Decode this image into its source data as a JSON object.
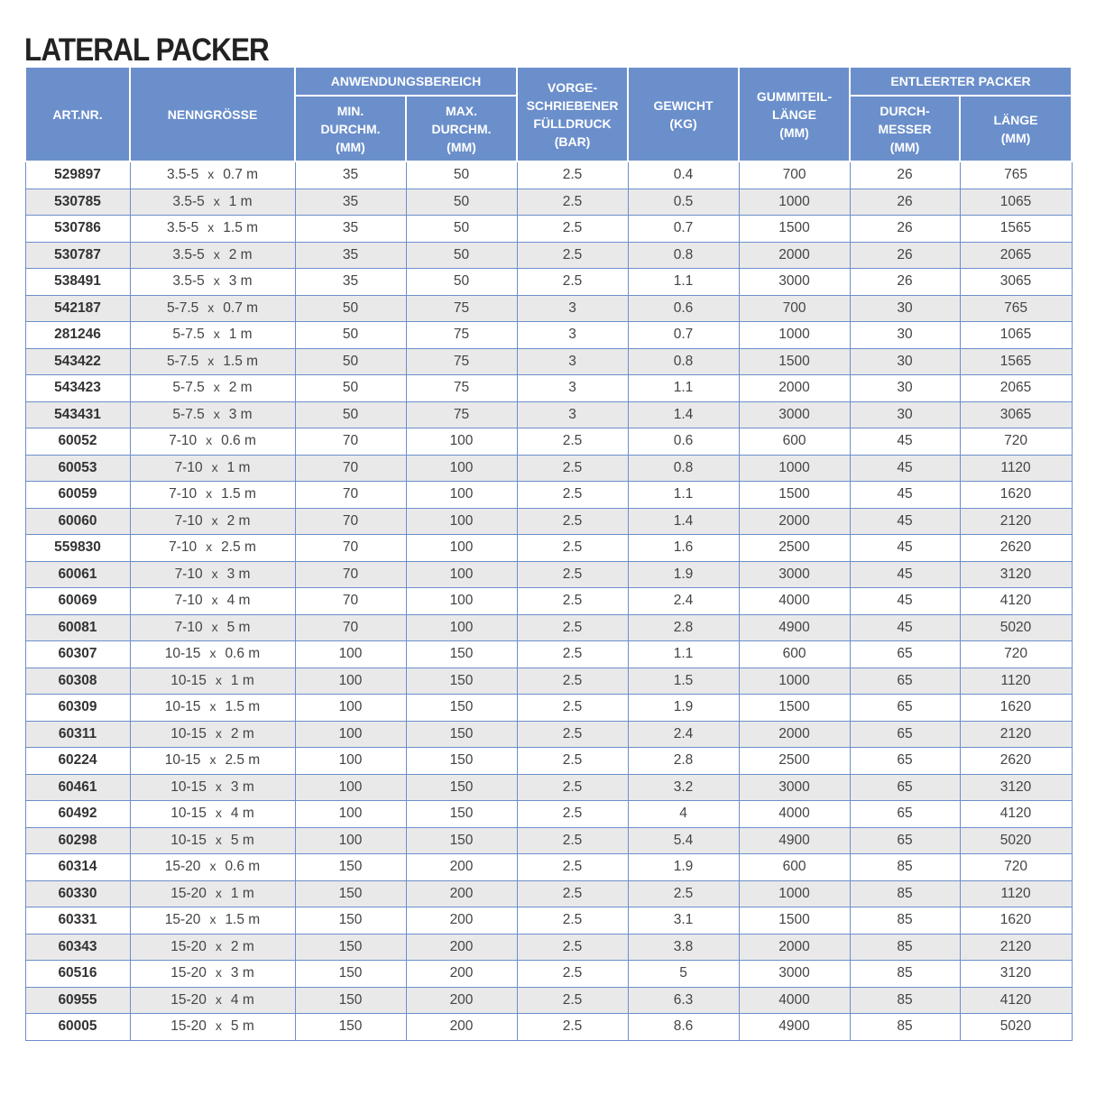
{
  "title": "LATERAL PACKER",
  "header_color": "#6b8fcb",
  "headers": {
    "art_nr": "ART.NR.",
    "nenngroesse": "NENNGRÖSSE",
    "anwendungsbereich": "ANWENDUNGSBEREICH",
    "min_durchm": [
      "MIN.",
      "DURCHM.",
      "(MM)"
    ],
    "max_durchm": [
      "MAX.",
      "DURCHM.",
      "(MM)"
    ],
    "fuelldruck": [
      "VORGE-",
      "SCHRIEBENER",
      "FÜLLDRUCK",
      "(BAR)"
    ],
    "gewicht": [
      "GEWICHT",
      "(KG)"
    ],
    "gummiteil": [
      "GUMMITEIL-",
      "LÄNGE",
      "(MM)"
    ],
    "entleerter": "ENTLEERTER PACKER",
    "durchmesser": [
      "DURCH-",
      "MESSER",
      "(MM)"
    ],
    "laenge": [
      "LÄNGE",
      "(MM)"
    ]
  },
  "rows": [
    [
      "529897",
      "3.5-5",
      "0.7 m",
      "35",
      "50",
      "2.5",
      "0.4",
      "700",
      "26",
      "765"
    ],
    [
      "530785",
      "3.5-5",
      "1 m",
      "35",
      "50",
      "2.5",
      "0.5",
      "1000",
      "26",
      "1065"
    ],
    [
      "530786",
      "3.5-5",
      "1.5 m",
      "35",
      "50",
      "2.5",
      "0.7",
      "1500",
      "26",
      "1565"
    ],
    [
      "530787",
      "3.5-5",
      "2 m",
      "35",
      "50",
      "2.5",
      "0.8",
      "2000",
      "26",
      "2065"
    ],
    [
      "538491",
      "3.5-5",
      "3 m",
      "35",
      "50",
      "2.5",
      "1.1",
      "3000",
      "26",
      "3065"
    ],
    [
      "542187",
      "5-7.5",
      "0.7 m",
      "50",
      "75",
      "3",
      "0.6",
      "700",
      "30",
      "765"
    ],
    [
      "281246",
      "5-7.5",
      "1 m",
      "50",
      "75",
      "3",
      "0.7",
      "1000",
      "30",
      "1065"
    ],
    [
      "543422",
      "5-7.5",
      "1.5 m",
      "50",
      "75",
      "3",
      "0.8",
      "1500",
      "30",
      "1565"
    ],
    [
      "543423",
      "5-7.5",
      "2 m",
      "50",
      "75",
      "3",
      "1.1",
      "2000",
      "30",
      "2065"
    ],
    [
      "543431",
      "5-7.5",
      "3 m",
      "50",
      "75",
      "3",
      "1.4",
      "3000",
      "30",
      "3065"
    ],
    [
      "60052",
      "7-10",
      "0.6 m",
      "70",
      "100",
      "2.5",
      "0.6",
      "600",
      "45",
      "720"
    ],
    [
      "60053",
      "7-10",
      "1 m",
      "70",
      "100",
      "2.5",
      "0.8",
      "1000",
      "45",
      "1120"
    ],
    [
      "60059",
      "7-10",
      "1.5 m",
      "70",
      "100",
      "2.5",
      "1.1",
      "1500",
      "45",
      "1620"
    ],
    [
      "60060",
      "7-10",
      "2 m",
      "70",
      "100",
      "2.5",
      "1.4",
      "2000",
      "45",
      "2120"
    ],
    [
      "559830",
      "7-10",
      "2.5 m",
      "70",
      "100",
      "2.5",
      "1.6",
      "2500",
      "45",
      "2620"
    ],
    [
      "60061",
      "7-10",
      "3 m",
      "70",
      "100",
      "2.5",
      "1.9",
      "3000",
      "45",
      "3120"
    ],
    [
      "60069",
      "7-10",
      "4 m",
      "70",
      "100",
      "2.5",
      "2.4",
      "4000",
      "45",
      "4120"
    ],
    [
      "60081",
      "7-10",
      "5 m",
      "70",
      "100",
      "2.5",
      "2.8",
      "4900",
      "45",
      "5020"
    ],
    [
      "60307",
      "10-15",
      "0.6 m",
      "100",
      "150",
      "2.5",
      "1.1",
      "600",
      "65",
      "720"
    ],
    [
      "60308",
      "10-15",
      "1 m",
      "100",
      "150",
      "2.5",
      "1.5",
      "1000",
      "65",
      "1120"
    ],
    [
      "60309",
      "10-15",
      "1.5 m",
      "100",
      "150",
      "2.5",
      "1.9",
      "1500",
      "65",
      "1620"
    ],
    [
      "60311",
      "10-15",
      "2 m",
      "100",
      "150",
      "2.5",
      "2.4",
      "2000",
      "65",
      "2120"
    ],
    [
      "60224",
      "10-15",
      "2.5 m",
      "100",
      "150",
      "2.5",
      "2.8",
      "2500",
      "65",
      "2620"
    ],
    [
      "60461",
      "10-15",
      "3 m",
      "100",
      "150",
      "2.5",
      "3.2",
      "3000",
      "65",
      "3120"
    ],
    [
      "60492",
      "10-15",
      "4 m",
      "100",
      "150",
      "2.5",
      "4",
      "4000",
      "65",
      "4120"
    ],
    [
      "60298",
      "10-15",
      "5 m",
      "100",
      "150",
      "2.5",
      "5.4",
      "4900",
      "65",
      "5020"
    ],
    [
      "60314",
      "15-20",
      "0.6 m",
      "150",
      "200",
      "2.5",
      "1.9",
      "600",
      "85",
      "720"
    ],
    [
      "60330",
      "15-20",
      "1 m",
      "150",
      "200",
      "2.5",
      "2.5",
      "1000",
      "85",
      "1120"
    ],
    [
      "60331",
      "15-20",
      "1.5 m",
      "150",
      "200",
      "2.5",
      "3.1",
      "1500",
      "85",
      "1620"
    ],
    [
      "60343",
      "15-20",
      "2 m",
      "150",
      "200",
      "2.5",
      "3.8",
      "2000",
      "85",
      "2120"
    ],
    [
      "60516",
      "15-20",
      "3 m",
      "150",
      "200",
      "2.5",
      "5",
      "3000",
      "85",
      "3120"
    ],
    [
      "60955",
      "15-20",
      "4 m",
      "150",
      "200",
      "2.5",
      "6.3",
      "4000",
      "85",
      "4120"
    ],
    [
      "60005",
      "15-20",
      "5 m",
      "150",
      "200",
      "2.5",
      "8.6",
      "4900",
      "85",
      "5020"
    ]
  ],
  "times_sign": "x"
}
